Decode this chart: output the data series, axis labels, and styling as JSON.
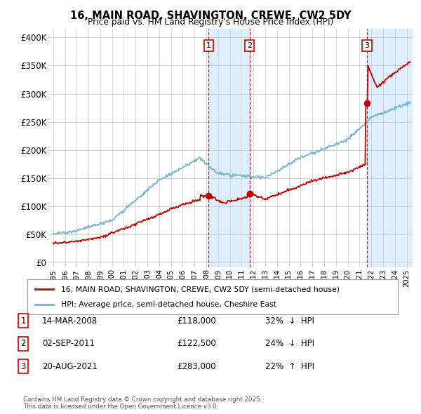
{
  "title": "16, MAIN ROAD, SHAVINGTON, CREWE, CW2 5DY",
  "subtitle": "Price paid vs. HM Land Registry's House Price Index (HPI)",
  "yticks": [
    0,
    50000,
    100000,
    150000,
    200000,
    250000,
    300000,
    350000,
    400000
  ],
  "ytick_labels": [
    "£0",
    "£50K",
    "£100K",
    "£150K",
    "£200K",
    "£250K",
    "£300K",
    "£350K",
    "£400K"
  ],
  "ylim": [
    -8000,
    415000
  ],
  "xlim_left": 1994.6,
  "xlim_right": 2025.5,
  "hpi_color": "#7ab3d4",
  "price_color": "#c00000",
  "shading_color": "#ddeeff",
  "vline_color": "#cc0000",
  "legend_label_price": "16, MAIN ROAD, SHAVINGTON, CREWE, CW2 5DY (semi-detached house)",
  "legend_label_hpi": "HPI: Average price, semi-detached house, Cheshire East",
  "transactions": [
    {
      "label": "1",
      "date_str": "14-MAR-2008",
      "year": 2008.2,
      "price": 118000,
      "pct": "32%",
      "dir": "↓"
    },
    {
      "label": "2",
      "date_str": "02-SEP-2011",
      "year": 2011.67,
      "price": 122500,
      "pct": "24%",
      "dir": "↓"
    },
    {
      "label": "3",
      "date_str": "20-AUG-2021",
      "year": 2021.63,
      "price": 283000,
      "pct": "22%",
      "dir": "↑"
    }
  ],
  "footnote": "Contains HM Land Registry data © Crown copyright and database right 2025.\nThis data is licensed under the Open Government Licence v3.0.",
  "background_color": "#ffffff",
  "plot_bg_color": "#ffffff"
}
